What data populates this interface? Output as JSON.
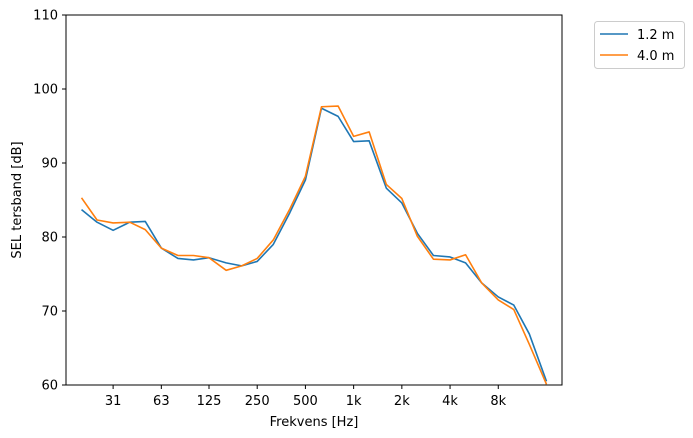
{
  "chart_data": {
    "type": "line",
    "xlabel": "Frekvens [Hz]",
    "ylabel": "SEL tersband [dB]",
    "ylim": [
      60,
      110
    ],
    "yticks": [
      60,
      70,
      80,
      90,
      100,
      110
    ],
    "x_scale": "log",
    "xticks": [
      {
        "value": 31.5,
        "label": "31"
      },
      {
        "value": 63,
        "label": "63"
      },
      {
        "value": 125,
        "label": "125"
      },
      {
        "value": 250,
        "label": "250"
      },
      {
        "value": 500,
        "label": "500"
      },
      {
        "value": 1000,
        "label": "1k"
      },
      {
        "value": 2000,
        "label": "2k"
      },
      {
        "value": 4000,
        "label": "4k"
      },
      {
        "value": 8000,
        "label": "8k"
      }
    ],
    "x": [
      20,
      25,
      31.5,
      40,
      50,
      63,
      80,
      100,
      125,
      160,
      200,
      250,
      315,
      400,
      500,
      630,
      800,
      1000,
      1250,
      1600,
      2000,
      2500,
      3150,
      4000,
      5000,
      6300,
      8000,
      10000,
      12500,
      16000
    ],
    "series": [
      {
        "name": "1.2 m",
        "color": "#1f77b4",
        "values": [
          83.7,
          82.0,
          80.9,
          82.0,
          82.1,
          78.5,
          77.1,
          76.9,
          77.2,
          76.5,
          76.1,
          76.7,
          79.0,
          83.3,
          87.7,
          97.4,
          96.3,
          92.9,
          93.0,
          86.6,
          84.6,
          80.5,
          77.5,
          77.3,
          76.5,
          73.8,
          71.9,
          70.8,
          66.9,
          60.5
        ]
      },
      {
        "name": "4.0 m",
        "color": "#ff7f0e",
        "values": [
          85.3,
          82.3,
          81.9,
          82.0,
          81.0,
          78.5,
          77.5,
          77.5,
          77.2,
          75.5,
          76.1,
          77.1,
          79.6,
          83.8,
          88.2,
          97.6,
          97.7,
          93.6,
          94.2,
          87.1,
          85.2,
          80.1,
          77.0,
          76.9,
          77.6,
          73.8,
          71.5,
          70.2,
          65.5,
          60.1
        ]
      }
    ],
    "legend_position": "outside-top-right",
    "grid": false
  }
}
